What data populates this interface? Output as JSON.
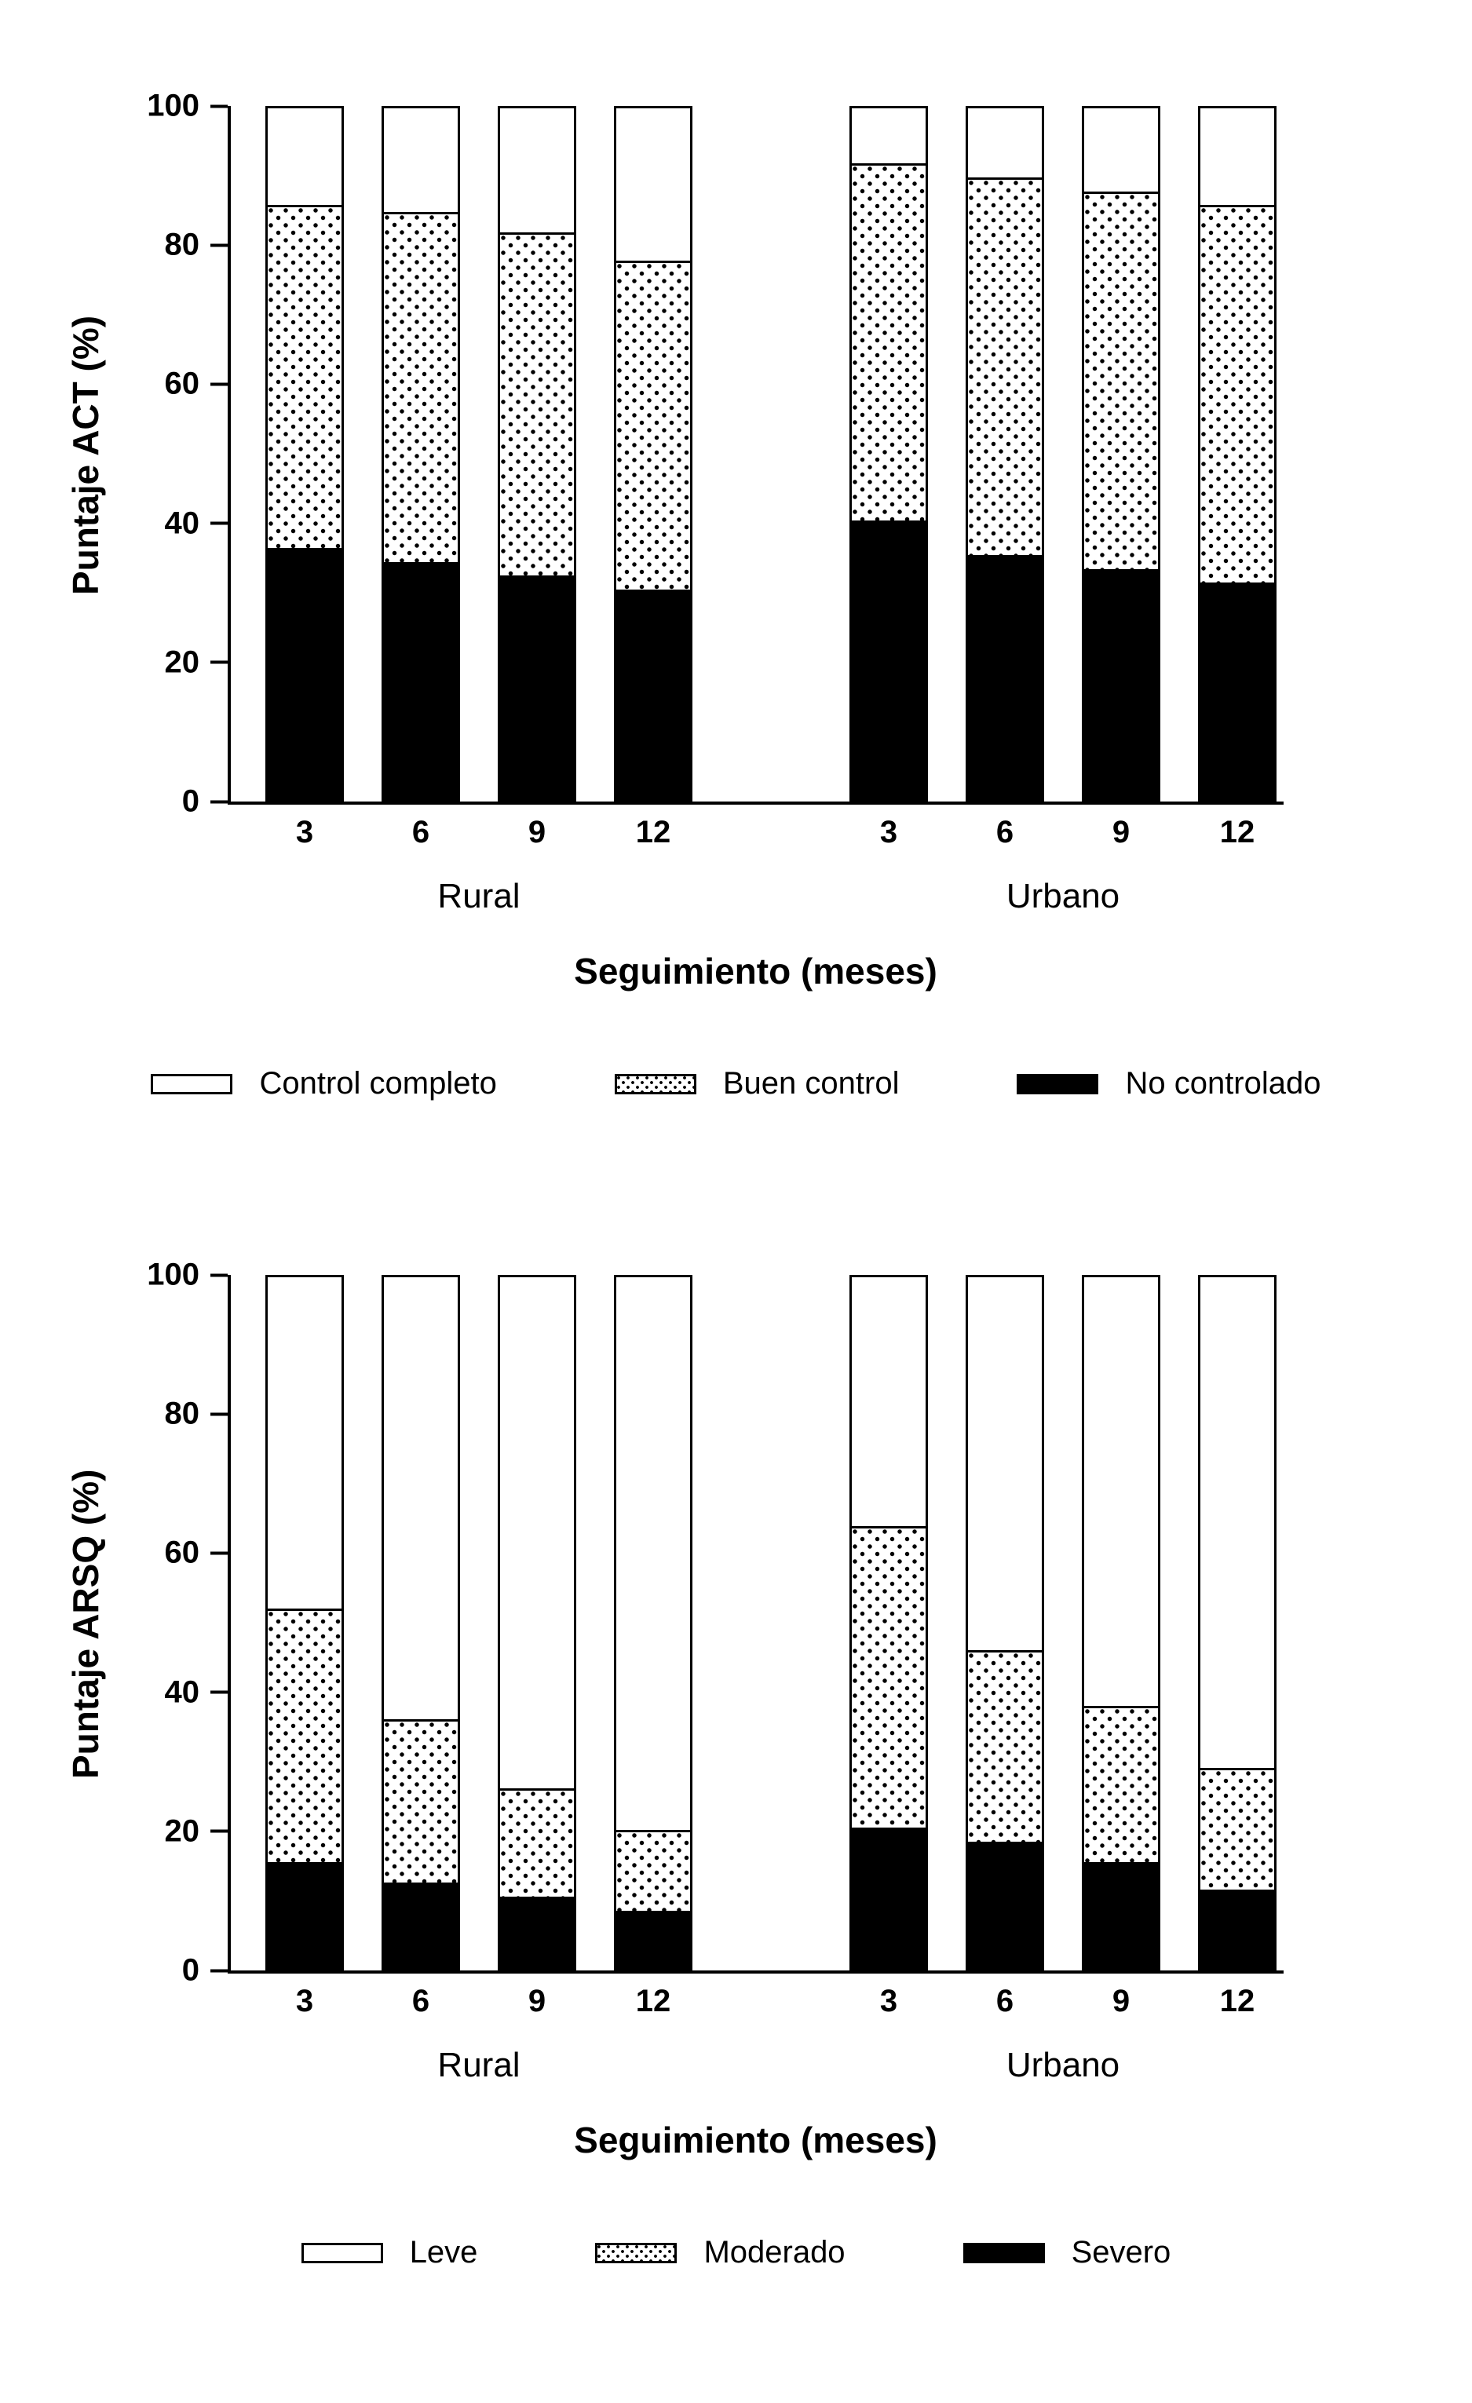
{
  "page": {
    "background": "#ffffff"
  },
  "colors": {
    "axis": "#000000",
    "bar_outline": "#000000",
    "fill_black": "#000000",
    "fill_white": "#ffffff",
    "fill_dotted": "#ffffff"
  },
  "chart_data": [
    {
      "type": "bar",
      "stacked": true,
      "title": "",
      "ylabel": "Puntaje ACT (%)",
      "xlabel": "Seguimiento (meses)",
      "ylim": [
        0,
        100
      ],
      "yticks": [
        0,
        20,
        40,
        60,
        80,
        100
      ],
      "grid": false,
      "legend_position": "bottom",
      "groups": [
        {
          "label": "Rural",
          "categories": [
            "3",
            "6",
            "9",
            "12"
          ]
        },
        {
          "label": "Urbano",
          "categories": [
            "3",
            "6",
            "9",
            "12"
          ]
        }
      ],
      "series": [
        {
          "name": "No controlado",
          "style": "black",
          "values": [
            [
              36,
              34,
              32,
              30
            ],
            [
              40,
              35,
              33,
              31
            ]
          ]
        },
        {
          "name": "Buen control",
          "style": "dotted",
          "values": [
            [
              50,
              51,
              50,
              48
            ],
            [
              52,
              55,
              55,
              55
            ]
          ]
        },
        {
          "name": "Control completo",
          "style": "white",
          "values": [
            [
              14,
              15,
              18,
              22
            ],
            [
              8,
              10,
              12,
              14
            ]
          ]
        }
      ],
      "legend": [
        {
          "label": "Control completo",
          "style": "white"
        },
        {
          "label": "Buen control",
          "style": "dotted"
        },
        {
          "label": "No controlado",
          "style": "black"
        }
      ]
    },
    {
      "type": "bar",
      "stacked": true,
      "title": "",
      "ylabel": "Puntaje ARSQ (%)",
      "xlabel": "Seguimiento (meses)",
      "ylim": [
        0,
        100
      ],
      "yticks": [
        0,
        20,
        40,
        60,
        80,
        100
      ],
      "grid": false,
      "legend_position": "bottom",
      "groups": [
        {
          "label": "Rural",
          "categories": [
            "3",
            "6",
            "9",
            "12"
          ]
        },
        {
          "label": "Urbano",
          "categories": [
            "3",
            "6",
            "9",
            "12"
          ]
        }
      ],
      "series": [
        {
          "name": "Severo",
          "style": "black",
          "values": [
            [
              15,
              12,
              10,
              8
            ],
            [
              20,
              18,
              15,
              11
            ]
          ]
        },
        {
          "name": "Moderado",
          "style": "dotted",
          "values": [
            [
              37,
              24,
              16,
              12
            ],
            [
              44,
              28,
              23,
              18
            ]
          ]
        },
        {
          "name": "Leve",
          "style": "white",
          "values": [
            [
              48,
              64,
              74,
              80
            ],
            [
              36,
              54,
              62,
              71
            ]
          ]
        }
      ],
      "legend": [
        {
          "label": "Leve",
          "style": "white"
        },
        {
          "label": "Moderado",
          "style": "dotted"
        },
        {
          "label": "Severo",
          "style": "black"
        }
      ]
    }
  ]
}
